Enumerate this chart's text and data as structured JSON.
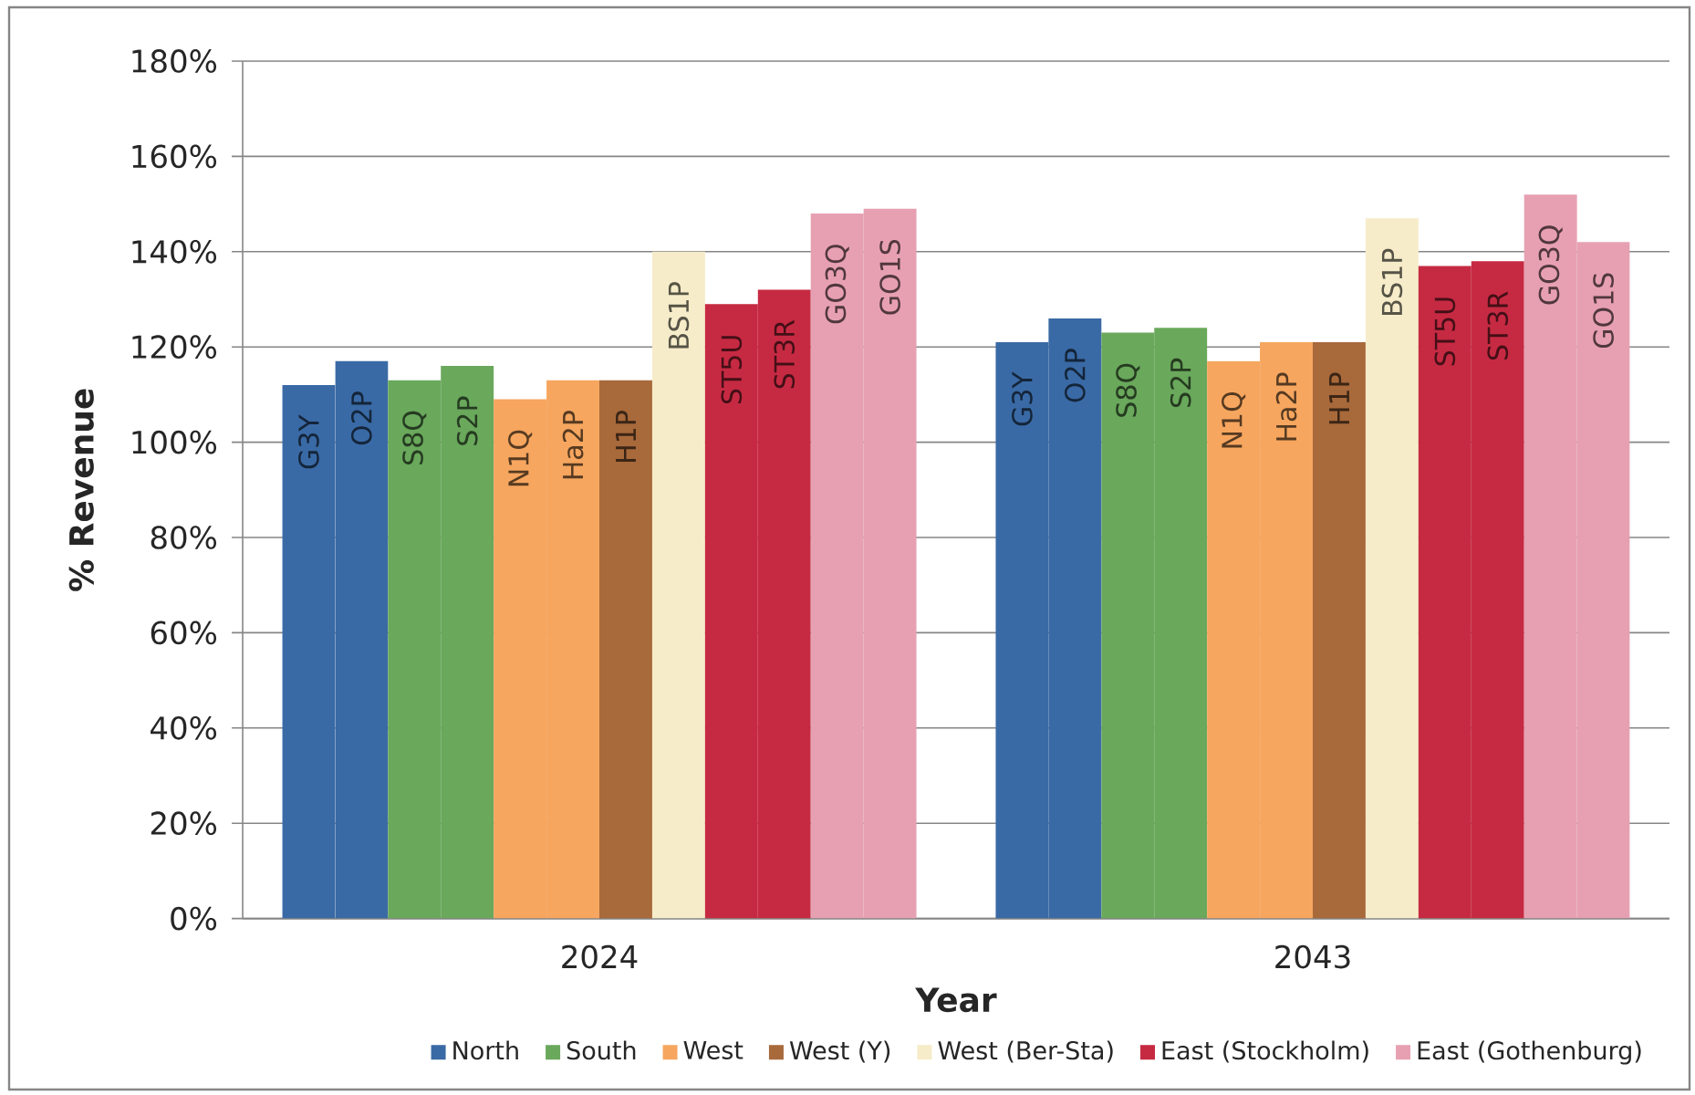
{
  "chart_data": {
    "type": "bar",
    "xlabel": "Year",
    "ylabel": "% Revenue",
    "categories": [
      "2024",
      "2043"
    ],
    "ylim": [
      0,
      180
    ],
    "yticks": [
      {
        "value": 0,
        "label": "0%"
      },
      {
        "value": 20,
        "label": "20%"
      },
      {
        "value": 40,
        "label": "40%"
      },
      {
        "value": 60,
        "label": "60%"
      },
      {
        "value": 80,
        "label": "80%"
      },
      {
        "value": 100,
        "label": "100%"
      },
      {
        "value": 120,
        "label": "120%"
      },
      {
        "value": 140,
        "label": "140%"
      },
      {
        "value": 160,
        "label": "160%"
      },
      {
        "value": 180,
        "label": "180%"
      }
    ],
    "grid": "y",
    "legend": "bottom",
    "series": [
      {
        "name": "North",
        "color": "#3a6aa5",
        "values": [
          112,
          121
        ],
        "value_labels": [
          "G3Y",
          "G3Y"
        ]
      },
      {
        "color": "#3a6aa5",
        "values": [
          117,
          126
        ],
        "value_labels": [
          "O2P",
          "O2P"
        ]
      },
      {
        "name": "South",
        "color": "#6aa85c",
        "values": [
          113,
          123
        ],
        "value_labels": [
          "S8Q",
          "S8Q"
        ]
      },
      {
        "color": "#6aa85c",
        "values": [
          116,
          124
        ],
        "value_labels": [
          "S2P",
          "S2P"
        ]
      },
      {
        "name": "West",
        "color": "#f6a65f",
        "values": [
          109,
          117
        ],
        "value_labels": [
          "N1Q",
          "N1Q"
        ]
      },
      {
        "color": "#f6a65f",
        "values": [
          113,
          121
        ],
        "value_labels": [
          "Ha2P",
          "Ha2P"
        ]
      },
      {
        "name": "West (Y)",
        "color": "#a8693b",
        "values": [
          113,
          121
        ],
        "value_labels": [
          "H1P",
          "H1P"
        ]
      },
      {
        "name": "West (Ber-Sta)",
        "color": "#f6ecc9",
        "values": [
          140,
          147
        ],
        "value_labels": [
          "BS1P",
          "BS1P"
        ]
      },
      {
        "name": "East (Stockholm)",
        "color": "#c62a42",
        "values": [
          129,
          137
        ],
        "value_labels": [
          "ST5U",
          "ST5U"
        ]
      },
      {
        "color": "#c62a42",
        "values": [
          132,
          138
        ],
        "value_labels": [
          "ST3R",
          "ST3R"
        ]
      },
      {
        "name": "East (Gothenburg)",
        "color": "#e7a0b2",
        "values": [
          148,
          152
        ],
        "value_labels": [
          "GO3Q",
          "GO3Q"
        ]
      },
      {
        "color": "#e7a0b2",
        "values": [
          149,
          142
        ],
        "value_labels": [
          "GO1S",
          "GO1S"
        ]
      }
    ]
  }
}
